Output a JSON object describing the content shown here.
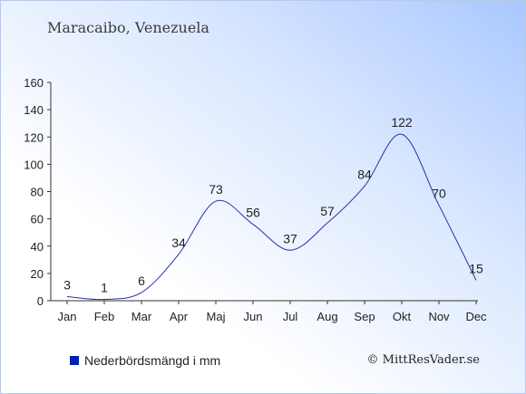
{
  "header": {
    "location": "Maracaibo, Venezuela"
  },
  "legend": {
    "label": "Nederbördsmängd i mm",
    "color": "#0022aa"
  },
  "footer": {
    "copyright": "© MittResVader.se"
  },
  "chart_data": {
    "type": "line",
    "title": "Maracaibo, Venezuela",
    "categories": [
      "Jan",
      "Feb",
      "Mar",
      "Apr",
      "Maj",
      "Jun",
      "Jul",
      "Aug",
      "Sep",
      "Okt",
      "Nov",
      "Dec"
    ],
    "series": [
      {
        "name": "Nederbördsmängd i mm",
        "values": [
          3,
          1,
          6,
          34,
          73,
          56,
          37,
          57,
          84,
          122,
          70,
          15
        ],
        "color": "#2233aa"
      }
    ],
    "ylim": [
      0,
      160
    ],
    "yticks": [
      0,
      20,
      40,
      60,
      80,
      100,
      120,
      140,
      160
    ],
    "grid": false,
    "legend_position": "bottom-left"
  }
}
